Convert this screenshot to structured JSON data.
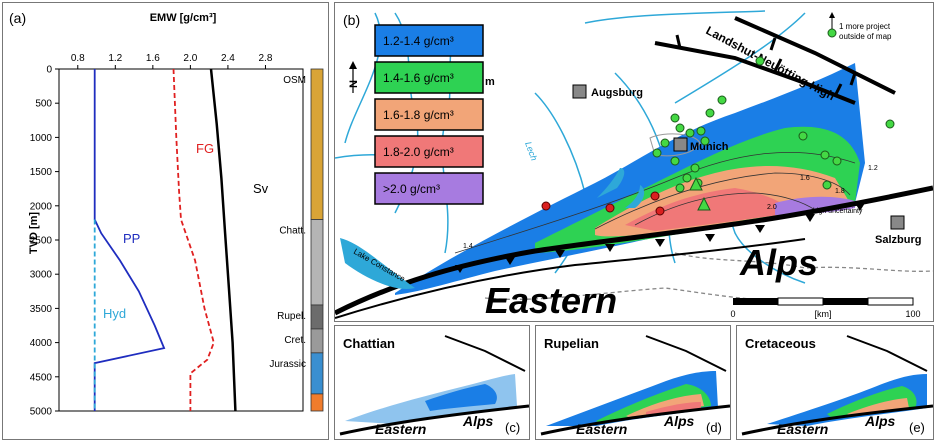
{
  "chart_data": [
    {
      "panel": "(a)",
      "type": "line",
      "xlabel": "EMW [g/cm³]",
      "ylabel": "TVD [m]",
      "xlim": [
        0.6,
        3.2
      ],
      "ylim": [
        0,
        5000
      ],
      "xticks": [
        "0.8",
        "1.2",
        "1.6",
        "2.0",
        "2.4",
        "2.8"
      ],
      "yticks": [
        "0",
        "500",
        "1000",
        "1500",
        "2000",
        "2500",
        "3000",
        "3500",
        "4000",
        "4500",
        "5000"
      ],
      "series": [
        {
          "name": "PP",
          "color": "#1f2dbf",
          "style": "solid",
          "points": [
            [
              0.98,
              0
            ],
            [
              0.98,
              2200
            ],
            [
              1.05,
              2400
            ],
            [
              1.25,
              2800
            ],
            [
              1.45,
              3250
            ],
            [
              1.62,
              3750
            ],
            [
              1.72,
              4080
            ],
            [
              0.98,
              4300
            ],
            [
              0.98,
              5000
            ]
          ]
        },
        {
          "name": "Hyd",
          "color": "#2ea8d8",
          "style": "dashed",
          "points": [
            [
              0.98,
              2200
            ],
            [
              0.98,
              5000
            ]
          ]
        },
        {
          "name": "FG",
          "color": "#e02020",
          "style": "dashed",
          "points": [
            [
              1.82,
              0
            ],
            [
              1.85,
              1000
            ],
            [
              1.88,
              1800
            ],
            [
              1.9,
              2200
            ],
            [
              2.05,
              2800
            ],
            [
              2.15,
              3500
            ],
            [
              2.25,
              4000
            ],
            [
              2.18,
              4250
            ],
            [
              2.0,
              4450
            ],
            [
              2.0,
              5000
            ]
          ]
        },
        {
          "name": "Sv",
          "color": "#000000",
          "style": "solid",
          "points": [
            [
              2.22,
              0
            ],
            [
              2.28,
              800
            ],
            [
              2.33,
              1600
            ],
            [
              2.37,
              2400
            ],
            [
              2.41,
              3200
            ],
            [
              2.45,
              4000
            ],
            [
              2.48,
              5000
            ]
          ]
        }
      ],
      "formations": [
        {
          "label": "OSM",
          "top": 0,
          "bottom": 2200,
          "color": "#d9a436"
        },
        {
          "label": "Chatt.",
          "top": 2200,
          "bottom": 3450,
          "color": "#b5b5b5"
        },
        {
          "label": "Rupel.",
          "top": 3450,
          "bottom": 3800,
          "color": "#6c6c6c"
        },
        {
          "label": "Cret.",
          "top": 3800,
          "bottom": 4150,
          "color": "#9a9a9a"
        },
        {
          "label": "Jurassic",
          "top": 4150,
          "bottom": 4750,
          "color": "#3a8fd0"
        },
        {
          "label": "",
          "top": 4750,
          "bottom": 5000,
          "color": "#f07c2c"
        }
      ]
    },
    {
      "panel": "(b)",
      "type": "map",
      "legend": [
        {
          "label": "1.2-1.4 g/cm³",
          "color": "#1a7ee6"
        },
        {
          "label": "1.4-1.6 g/cm³",
          "color": "#2ed253"
        },
        {
          "label": "1.6-1.8 g/cm³",
          "color": "#f2a578"
        },
        {
          "label": "1.8-2.0 g/cm³",
          "color": "#f07878"
        },
        {
          "label": ">2.0 g/cm³",
          "color": "#a77be0"
        }
      ]
    }
  ],
  "panel_a": {
    "label": "(a)",
    "pp": "PP",
    "hyd": "Hyd",
    "fg": "FG",
    "sv": "Sv"
  },
  "panel_b": {
    "label": "(b)",
    "cities": {
      "augsburg": "Augsburg",
      "munich": "Munich",
      "salzburg": "Salzburg"
    },
    "lake": "Lake Constance",
    "lech": "Lech",
    "landshut": "Landshut-Neuötting High",
    "eastern": "Eastern",
    "alps": "Alps",
    "project_note_1": "1 more project",
    "project_note_2": "outside of map",
    "high_uncertainty": "high uncertainty",
    "contours": [
      "1.2",
      "1.6",
      "1.8",
      "2.0",
      "1.4"
    ],
    "scale": {
      "left": "0",
      "mid": "[km]",
      "right": "100"
    },
    "north": "N",
    "m_partial": "m"
  },
  "insets": [
    {
      "title": "Chattian",
      "tag": "(c)",
      "eastern": "Eastern",
      "alps": "Alps"
    },
    {
      "title": "Rupelian",
      "tag": "(d)",
      "eastern": "Eastern",
      "alps": "Alps"
    },
    {
      "title": "Cretaceous",
      "tag": "(e)",
      "eastern": "Eastern",
      "alps": "Alps"
    }
  ]
}
